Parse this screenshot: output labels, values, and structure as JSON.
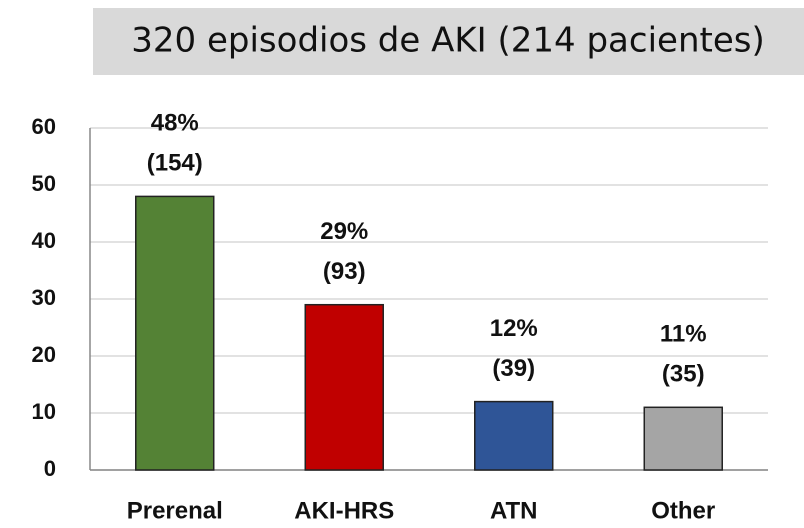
{
  "chart_data": {
    "type": "bar",
    "title": "320 episodios de AKI (214 pacientes)",
    "categories": [
      "Prerenal",
      "AKI-HRS",
      "ATN",
      "Other"
    ],
    "values": [
      48,
      29,
      12,
      11
    ],
    "value_labels": [
      "48%",
      "29%",
      "12%",
      "11%"
    ],
    "count_labels": [
      "(154)",
      "(93)",
      "(39)",
      "(35)"
    ],
    "colors": [
      "#548235",
      "#c00000",
      "#2f5597",
      "#a5a5a5"
    ],
    "ylim": [
      0,
      60
    ],
    "yticks": [
      0,
      10,
      20,
      30,
      40,
      50,
      60
    ],
    "grid": true
  }
}
